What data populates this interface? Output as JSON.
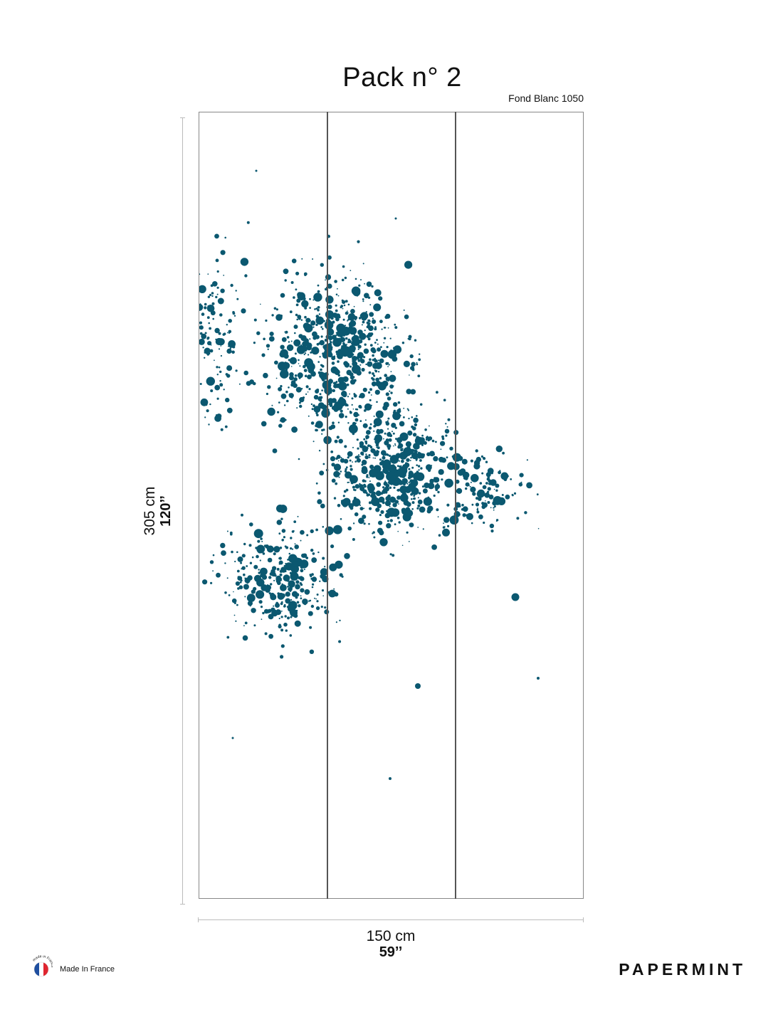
{
  "header": {
    "title": "Pack n° 2",
    "subtitle": "Fond Blanc 1050"
  },
  "dimensions": {
    "height_cm": "305 cm",
    "height_in": "120’’",
    "width_cm": "150 cm",
    "width_in": "59’’"
  },
  "panels": {
    "count": 3,
    "dot_color": "#0b5870"
  },
  "footer": {
    "made_in_france_label": "Made In France",
    "badge_text": "made in France",
    "brand": "PAPERMINT"
  }
}
